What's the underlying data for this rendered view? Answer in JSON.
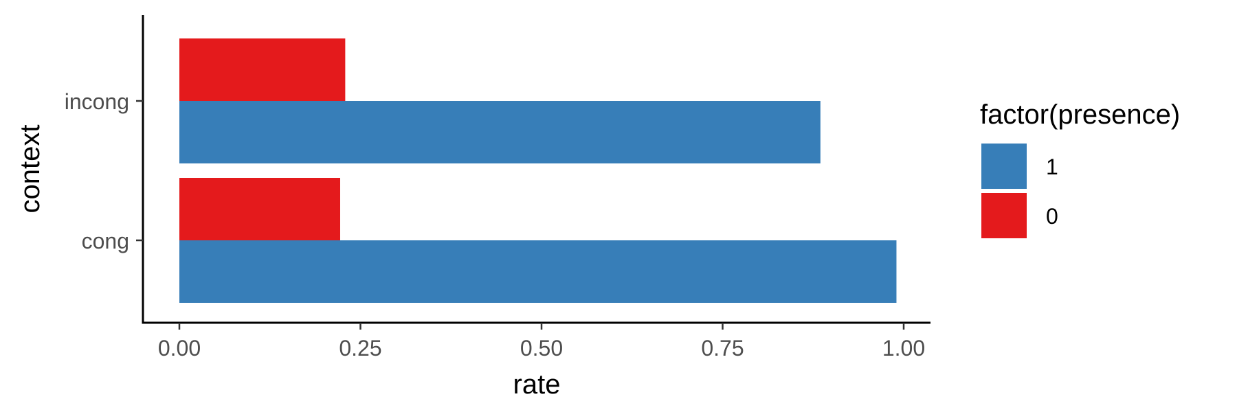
{
  "chart_data": {
    "type": "bar",
    "orientation": "horizontal",
    "categories": [
      "cong",
      "incong"
    ],
    "series": [
      {
        "name": "1",
        "color": "#377EB8",
        "values": [
          0.99,
          0.885
        ]
      },
      {
        "name": "0",
        "color": "#E41A1C",
        "values": [
          0.222,
          0.229
        ]
      }
    ],
    "xlabel": "rate",
    "ylabel": "context",
    "xlim": [
      0,
      1
    ],
    "xticks": [
      "0.00",
      "0.25",
      "0.50",
      "0.75",
      "1.00"
    ],
    "xtick_values": [
      0,
      0.25,
      0.5,
      0.75,
      1
    ],
    "legend": {
      "title": "factor(presence)",
      "position": "right",
      "entries": [
        "1",
        "0"
      ]
    },
    "grid": false
  }
}
